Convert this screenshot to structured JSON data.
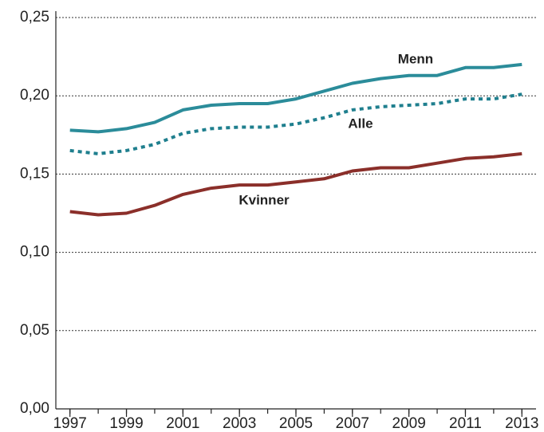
{
  "chart_data": {
    "type": "line",
    "x": [
      1997,
      1998,
      1999,
      2000,
      2001,
      2002,
      2003,
      2004,
      2005,
      2006,
      2007,
      2008,
      2009,
      2010,
      2011,
      2012,
      2013
    ],
    "series": [
      {
        "name": "Menn",
        "color": "#2b8c9a",
        "dashed": false,
        "values": [
          0.178,
          0.177,
          0.179,
          0.183,
          0.191,
          0.194,
          0.195,
          0.195,
          0.198,
          0.203,
          0.208,
          0.211,
          0.213,
          0.213,
          0.218,
          0.218,
          0.22
        ]
      },
      {
        "name": "Alle",
        "color": "#1f7f8e",
        "dashed": true,
        "values": [
          0.165,
          0.163,
          0.165,
          0.169,
          0.176,
          0.179,
          0.18,
          0.18,
          0.182,
          0.186,
          0.191,
          0.193,
          0.194,
          0.195,
          0.198,
          0.198,
          0.201
        ]
      },
      {
        "name": "Kvinner",
        "color": "#8b2f2a",
        "dashed": false,
        "values": [
          0.126,
          0.124,
          0.125,
          0.13,
          0.137,
          0.141,
          0.143,
          0.143,
          0.145,
          0.147,
          0.152,
          0.154,
          0.154,
          0.157,
          0.16,
          0.161,
          0.163
        ]
      }
    ],
    "xlim": [
      1996.5,
      2013.5
    ],
    "xticks": [
      1997,
      1999,
      2001,
      2003,
      2005,
      2007,
      2009,
      2011,
      2013
    ],
    "ylim": [
      0,
      0.25
    ],
    "yticks": [
      {
        "value": 0,
        "label": "0,00"
      },
      {
        "value": 0.05,
        "label": "0,05"
      },
      {
        "value": 0.1,
        "label": "0,10"
      },
      {
        "value": 0.15,
        "label": "0,15"
      },
      {
        "value": 0.2,
        "label": "0,20"
      },
      {
        "value": 0.25,
        "label": "0,25"
      }
    ],
    "grid": true
  }
}
